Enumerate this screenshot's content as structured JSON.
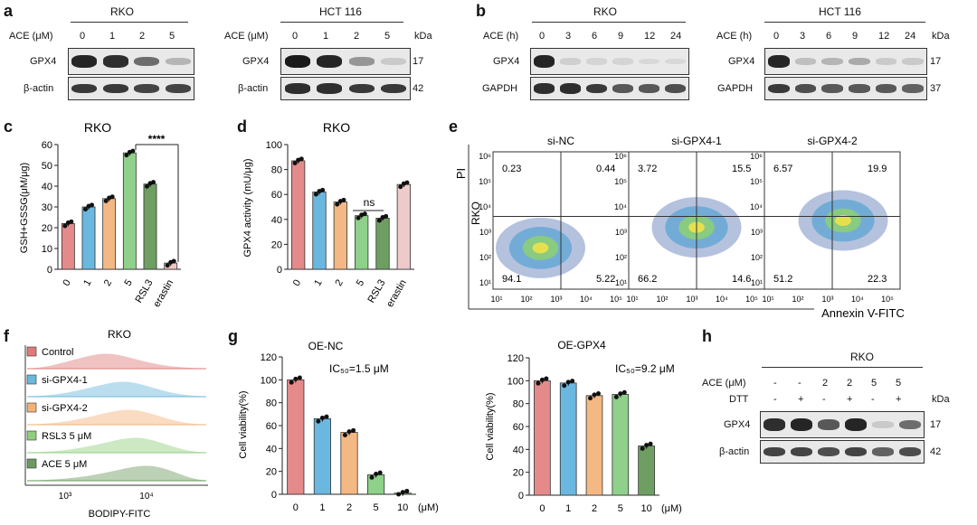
{
  "panels": {
    "a": {
      "letter": "a",
      "left": {
        "cell": "RKO",
        "cond_label": "ACE (μM)",
        "conc": [
          "0",
          "1",
          "2",
          "5"
        ],
        "rows": [
          "GPX4",
          "β-actin"
        ]
      },
      "right": {
        "cell": "HCT 116",
        "cond_label": "ACE (μM)",
        "conc": [
          "0",
          "1",
          "2",
          "5"
        ],
        "rows": [
          "GPX4",
          "β-actin"
        ],
        "kda": "kDa",
        "mw": [
          "17",
          "42"
        ]
      }
    },
    "b": {
      "letter": "b",
      "left": {
        "cell": "RKO",
        "cond_label": "ACE (h)",
        "time": [
          "0",
          "3",
          "6",
          "9",
          "12",
          "24"
        ],
        "rows": [
          "GPX4",
          "GAPDH"
        ]
      },
      "right": {
        "cell": "HCT 116",
        "cond_label": "ACE (h)",
        "time": [
          "0",
          "3",
          "6",
          "9",
          "12",
          "24"
        ],
        "rows": [
          "GPX4",
          "GAPDH"
        ],
        "kda": "kDa",
        "mw": [
          "17",
          "37"
        ]
      }
    },
    "c": {
      "letter": "c",
      "sig": "****"
    },
    "d": {
      "letter": "d",
      "sig": "ns"
    },
    "e": {
      "letter": "e",
      "groups": [
        "si-NC",
        "si-GPX4-1",
        "si-GPX4-2"
      ],
      "quads": [
        [
          "0.23",
          "0.44",
          "94.1",
          "5.22"
        ],
        [
          "3.72",
          "15.5",
          "66.2",
          "14.6"
        ],
        [
          "6.57",
          "19.9",
          "51.2",
          "22.3"
        ]
      ],
      "ylabel": "PI",
      "row_label": "RKO",
      "xlabel": "Annexin V-FITC",
      "yticks": [
        "10⁶",
        "10⁵",
        "10⁴",
        "10³",
        "10²",
        "10¹"
      ],
      "xticks": [
        "10¹",
        "10²",
        "10³",
        "10⁴",
        "10⁵"
      ]
    },
    "f": {
      "letter": "f",
      "title": "RKO",
      "legend": [
        "Control",
        "si-GPX4-1",
        "si-GPX4-2",
        "RSL3 5 μM",
        "ACE 5 μM"
      ],
      "colors": [
        "#e07a7a",
        "#6bb8dd",
        "#f2b277",
        "#8fcf7e",
        "#6c9a5f"
      ],
      "xticks": [
        "10³",
        "10⁴"
      ],
      "xlabel": "BODIPY-FITC"
    },
    "g": {
      "letter": "g"
    },
    "h": {
      "letter": "h",
      "cell": "RKO",
      "ace_label": "ACE (μM)",
      "ace": [
        "-",
        "-",
        "2",
        "2",
        "5",
        "5"
      ],
      "dtt_label": "DTT",
      "dtt": [
        "-",
        "+",
        "-",
        "+",
        "-",
        "+"
      ],
      "rows": [
        "GPX4",
        "β-actin"
      ],
      "kda": "kDa",
      "mw": [
        "17",
        "42"
      ]
    }
  },
  "chart_data": [
    {
      "id": "c",
      "type": "bar",
      "title": "RKO",
      "ylabel": "GSH+GSSG(μM/μg)",
      "categories": [
        "0",
        "1",
        "2",
        "5",
        "RSL3",
        "erastin"
      ],
      "values": [
        22,
        30,
        34,
        56,
        41,
        3
      ],
      "colors": [
        "#e48a8a",
        "#6ab8e0",
        "#f4b884",
        "#8fd08a",
        "#6f9e63",
        "#f0c4c4"
      ],
      "ylim": [
        0,
        60
      ],
      "yticks": [
        "0",
        "10",
        "20",
        "30",
        "40",
        "50",
        "60"
      ]
    },
    {
      "id": "d",
      "type": "bar",
      "title": "RKO",
      "ylabel": "GPX4 activity (mU/μg)",
      "categories": [
        "0",
        "1",
        "2",
        "5",
        "RSL3",
        "erastin"
      ],
      "values": [
        87,
        62,
        54,
        43,
        41,
        68
      ],
      "colors": [
        "#e48a8a",
        "#6ab8e0",
        "#f4b884",
        "#8fd08a",
        "#6f9e63",
        "#eecaca"
      ],
      "ylim": [
        0,
        100
      ],
      "yticks": [
        "0",
        "20",
        "40",
        "60",
        "80",
        "100"
      ]
    },
    {
      "id": "g1",
      "type": "bar",
      "title": "OE-NC",
      "ic50": "IC₅₀=1.5 μM",
      "ylabel": "Cell viability(%)",
      "categories": [
        "0",
        "1",
        "2",
        "5",
        "10"
      ],
      "unit": "(μM)",
      "values": [
        100,
        66,
        54,
        17,
        1
      ],
      "colors": [
        "#e48a8a",
        "#6ab8e0",
        "#f4b884",
        "#8fd08a",
        "#8fd08a"
      ],
      "ylim": [
        0,
        120
      ],
      "yticks": [
        "0",
        "20",
        "40",
        "60",
        "80",
        "100",
        "120"
      ]
    },
    {
      "id": "g2",
      "type": "bar",
      "title": "OE-GPX4",
      "ic50": "IC₅₀=9.2 μM",
      "ylabel": "Cell viability(%)",
      "categories": [
        "0",
        "1",
        "2",
        "5",
        "10"
      ],
      "unit": "(μM)",
      "values": [
        100,
        98,
        87,
        88,
        43
      ],
      "colors": [
        "#e48a8a",
        "#6ab8e0",
        "#f4b884",
        "#8fd08a",
        "#6f9e63"
      ],
      "ylim": [
        0,
        120
      ],
      "yticks": [
        "0",
        "20",
        "40",
        "60",
        "80",
        "100",
        "120"
      ]
    }
  ]
}
